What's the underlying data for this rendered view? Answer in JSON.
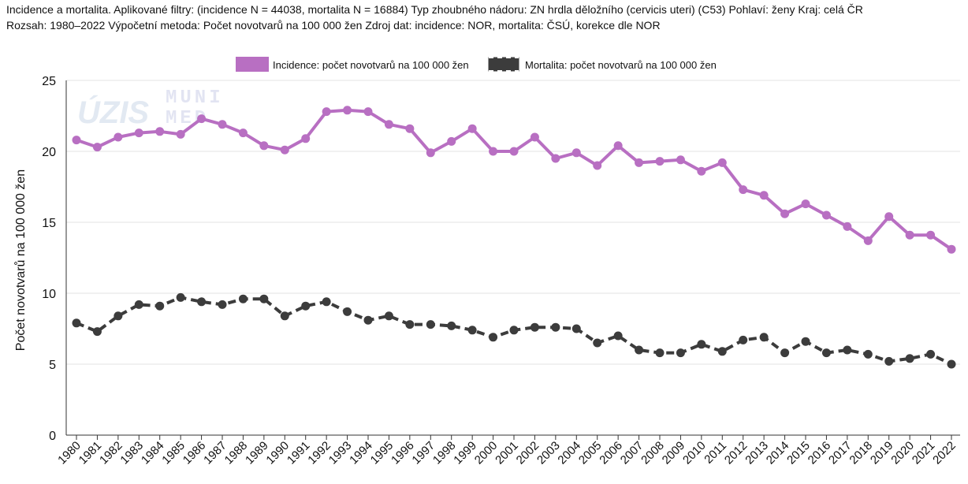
{
  "caption": {
    "line1": "Incidence a mortalita. Aplikované filtry: (incidence N = 44038, mortalita N = 16884) Typ zhoubného nádoru: ZN hrdla děložního (cervicis uteri) (C53) Pohlaví: ženy Kraj: celá ČR",
    "line2": "Rozsah: 1980–2022 Výpočetní metoda: Počet novotvarů na 100 000 žen Zdroj dat: incidence: NOR, mortalita: ČSÚ, korekce dle NOR"
  },
  "watermark": {
    "logo1": "ÚZIS",
    "logo2_line1": "MUNI",
    "logo2_line2": "MED"
  },
  "chart_data": {
    "type": "line",
    "title": "",
    "xlabel": "",
    "ylabel": "Počet novotvarů na 100 000 žen",
    "ylim": [
      0,
      25
    ],
    "yticks": [
      0,
      5,
      10,
      15,
      20,
      25
    ],
    "grid": "horizontal",
    "legend_position": "top-center",
    "x": [
      "1980",
      "1981",
      "1982",
      "1983",
      "1984",
      "1985",
      "1986",
      "1987",
      "1988",
      "1989",
      "1990",
      "1991",
      "1992",
      "1993",
      "1994",
      "1995",
      "1996",
      "1997",
      "1998",
      "1999",
      "2000",
      "2001",
      "2002",
      "2003",
      "2004",
      "2005",
      "2006",
      "2007",
      "2008",
      "2009",
      "2010",
      "2011",
      "2012",
      "2013",
      "2014",
      "2015",
      "2016",
      "2017",
      "2018",
      "2019",
      "2020",
      "2021",
      "2022"
    ],
    "series": [
      {
        "name": "Incidence: počet novotvarů na 100 000 žen",
        "color": "#b86fc2",
        "style": "solid",
        "values": [
          20.8,
          20.3,
          21.0,
          21.3,
          21.4,
          21.2,
          22.3,
          21.9,
          21.3,
          20.4,
          20.1,
          20.9,
          22.8,
          22.9,
          22.8,
          21.9,
          21.6,
          19.9,
          20.7,
          21.6,
          20.0,
          20.0,
          21.0,
          19.5,
          19.9,
          19.0,
          20.4,
          19.2,
          19.3,
          19.4,
          18.6,
          19.2,
          17.3,
          16.9,
          15.6,
          16.3,
          15.5,
          14.7,
          13.7,
          15.4,
          14.1,
          14.1,
          13.1
        ]
      },
      {
        "name": "Mortalita: počet novotvarů na 100 000 žen",
        "color": "#3c3c3c",
        "style": "dashed",
        "values": [
          7.9,
          7.3,
          8.4,
          9.2,
          9.1,
          9.7,
          9.4,
          9.2,
          9.6,
          9.6,
          8.4,
          9.1,
          9.4,
          8.7,
          8.1,
          8.4,
          7.8,
          7.8,
          7.7,
          7.4,
          6.9,
          7.4,
          7.6,
          7.6,
          7.5,
          6.5,
          7.0,
          6.0,
          5.8,
          5.8,
          6.4,
          5.9,
          6.7,
          6.9,
          5.8,
          6.6,
          5.8,
          6.0,
          5.7,
          5.2,
          5.4,
          5.7,
          5.0
        ]
      }
    ]
  }
}
